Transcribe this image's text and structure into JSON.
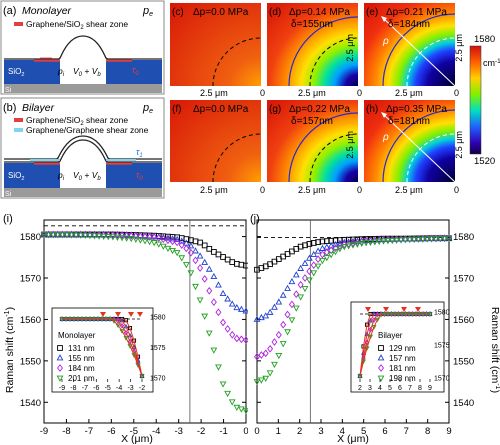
{
  "colors": {
    "sio2_blue": "#1f4fb0",
    "si_gray": "#9a9a9a",
    "shear_red": "#e04040",
    "shear_cyan": "#7fd4f0",
    "fit_red": "#e8321e",
    "dash": "#000000",
    "contour_blue": "#2a2ad0",
    "series_colors": [
      "#000000",
      "#1f3fd0",
      "#b020e0",
      "#20a020"
    ]
  },
  "panel_a": {
    "label": "(a)",
    "title": "Monolayer",
    "pe": "p",
    "pe_sub": "e",
    "legend": "Graphene/SiO",
    "legend_sub": "2",
    "legend_tail": " shear zone",
    "sio2": "SiO",
    "sio2_sub": "2",
    "si": "Si",
    "pi": "p",
    "pi_sub": "i",
    "volume": "V",
    "volume_sub0": "0",
    "volume_plus": " + V",
    "volume_subb": "b",
    "tau": "τ",
    "tau_sub": "0"
  },
  "panel_b": {
    "label": "(b)",
    "title": "Bilayer",
    "pe": "p",
    "pe_sub": "e",
    "legend1": "Graphene/SiO",
    "legend1_sub": "2",
    "legend1_tail": " shear zone",
    "legend2": "Graphene/Graphene shear zone",
    "sio2": "SiO",
    "sio2_sub": "2",
    "si": "Si",
    "pi": "p",
    "pi_sub": "i",
    "volume": "V",
    "volume_sub0": "0",
    "volume_plus": " + V",
    "volume_subb": "b",
    "tau0": "τ",
    "tau0_sub": "0",
    "tau1": "τ",
    "tau1_sub": "1"
  },
  "maps": [
    {
      "label": "(c)",
      "line1": "Δp=0.0 MPa",
      "line2": ""
    },
    {
      "label": "(d)",
      "line1": "Δp=0.14 MPa",
      "line2": "δ=155nm"
    },
    {
      "label": "(e)",
      "line1": "Δp=0.21 MPa",
      "line2": "δ=184nm"
    },
    {
      "label": "(f)",
      "line1": "Δp=0.0 MPa",
      "line2": ""
    },
    {
      "label": "(g)",
      "line1": "Δp=0.22 MPa",
      "line2": "δ=157nm"
    },
    {
      "label": "(h)",
      "line1": "Δp=0.35 MPa",
      "line2": "δ=181nm"
    }
  ],
  "map_axis": {
    "tick_x": "2.5 μm",
    "tick_zero": "0",
    "tick_y": "2.5 μm",
    "rho": "ρ"
  },
  "colorbar": {
    "max": "1580",
    "unit": "cm",
    "unit_sup": "-1",
    "min": "1520"
  },
  "plot_i": {
    "label": "(i)",
    "ylabel": "Raman shift (cm",
    "ylabel_sup": "-1",
    "ylabel_tail": ")",
    "xlabel": "X (μm)",
    "xticks": [
      "-9",
      "-8",
      "-7",
      "-6",
      "-5",
      "-4",
      "-3",
      "-2",
      "-1",
      "0"
    ],
    "yticks": [
      "1580",
      "1570",
      "1560",
      "1550",
      "1540"
    ],
    "inset": {
      "title": "Monolayer",
      "items": [
        "131 nm",
        "155 nm",
        "184 nm",
        "201 nm"
      ],
      "xticks": [
        "-9",
        "-8",
        "-7",
        "-6",
        "-5",
        "-4",
        "-3",
        "-2"
      ],
      "yticks": [
        "1580",
        "1575",
        "1570"
      ]
    }
  },
  "plot_j": {
    "label": "(j)",
    "ylabel": "Raman shift (cm",
    "ylabel_sup": "-1",
    "ylabel_tail": ")",
    "xlabel": "X (μm)",
    "xticks": [
      "0",
      "1",
      "2",
      "3",
      "4",
      "5",
      "6",
      "7",
      "8",
      "9"
    ],
    "yticks": [
      "1580",
      "1570",
      "1560",
      "1550",
      "1540"
    ],
    "inset": {
      "title": "Bilayer",
      "items": [
        "129 nm",
        "157 nm",
        "181 nm",
        "198 nm"
      ],
      "xticks": [
        "2",
        "3",
        "4",
        "5",
        "6",
        "7",
        "8",
        "9"
      ],
      "yticks": [
        "1580",
        "1575",
        "1570"
      ]
    }
  },
  "chart_data": [
    {
      "type": "scatter",
      "panel": "(i)",
      "xlabel": "X (μm)",
      "ylabel": "Raman shift (cm-1)",
      "xlim": [
        -9,
        0
      ],
      "ylim": [
        1535,
        1584
      ],
      "legend_title": "Monolayer",
      "series": [
        {
          "name": "131 nm",
          "marker": "square",
          "x": [
            -9,
            -8,
            -7,
            -6,
            -5,
            -4,
            -3,
            -2.5,
            -2,
            -1.5,
            -1,
            -0.5,
            0
          ],
          "y": [
            1580.5,
            1580.5,
            1580.5,
            1580.5,
            1580.4,
            1580.2,
            1579.8,
            1579.2,
            1578.5,
            1576.5,
            1575,
            1573.5,
            1573
          ]
        },
        {
          "name": "155 nm",
          "marker": "triangle-up",
          "x": [
            -9,
            -8,
            -7,
            -6,
            -5,
            -4,
            -3,
            -2.5,
            -2,
            -1.5,
            -1,
            -0.5,
            0
          ],
          "y": [
            1580.5,
            1580.5,
            1580.5,
            1580.5,
            1580.3,
            1580,
            1579.2,
            1578,
            1575,
            1571,
            1566,
            1563,
            1562
          ]
        },
        {
          "name": "184 nm",
          "marker": "diamond",
          "x": [
            -9,
            -8,
            -7,
            -6,
            -5,
            -4,
            -3,
            -2.5,
            -2,
            -1.5,
            -1,
            -0.5,
            0
          ],
          "y": [
            1580.5,
            1580.5,
            1580.5,
            1580.4,
            1580.2,
            1579.8,
            1578.5,
            1576.5,
            1572,
            1565,
            1559,
            1555.5,
            1555
          ]
        },
        {
          "name": "201 nm",
          "marker": "triangle-down",
          "x": [
            -9,
            -8,
            -7,
            -6,
            -5,
            -4,
            -3,
            -2.5,
            -2,
            -1.5,
            -1,
            -0.5,
            0
          ],
          "y": [
            1580.5,
            1580.5,
            1580.3,
            1580,
            1579.5,
            1578.5,
            1576,
            1572,
            1564,
            1554,
            1544,
            1539,
            1538
          ]
        }
      ]
    },
    {
      "type": "scatter",
      "panel": "(j)",
      "xlabel": "X (μm)",
      "ylabel": "Raman shift (cm-1)",
      "xlim": [
        0,
        9
      ],
      "ylim": [
        1535,
        1584
      ],
      "legend_title": "Bilayer",
      "series": [
        {
          "name": "129 nm",
          "marker": "square",
          "x": [
            0,
            0.5,
            1,
            1.5,
            2,
            2.5,
            3,
            4,
            5,
            6,
            7,
            8,
            9
          ],
          "y": [
            1572,
            1573,
            1574.5,
            1576,
            1577.5,
            1578.3,
            1578.8,
            1579.2,
            1579.4,
            1579.5,
            1579.5,
            1579.6,
            1579.6
          ]
        },
        {
          "name": "157 nm",
          "marker": "triangle-up",
          "x": [
            0,
            0.5,
            1,
            1.5,
            2,
            2.5,
            3,
            4,
            5,
            6,
            7,
            8,
            9
          ],
          "y": [
            1560,
            1561,
            1564,
            1568,
            1572,
            1575,
            1577,
            1578.5,
            1579,
            1579.3,
            1579.4,
            1579.5,
            1579.6
          ]
        },
        {
          "name": "181 nm",
          "marker": "diamond",
          "x": [
            0,
            0.5,
            1,
            1.5,
            2,
            2.5,
            3,
            4,
            5,
            6,
            7,
            8,
            9
          ],
          "y": [
            1551,
            1552,
            1556,
            1562,
            1568,
            1572,
            1575.5,
            1578,
            1578.8,
            1579.2,
            1579.4,
            1579.5,
            1579.6
          ]
        },
        {
          "name": "198 nm",
          "marker": "triangle-down",
          "x": [
            0,
            0.5,
            1,
            1.5,
            2,
            2.5,
            3,
            4,
            5,
            6,
            7,
            8,
            9
          ],
          "y": [
            1545,
            1546,
            1551,
            1558,
            1565,
            1570,
            1574,
            1577.5,
            1578.5,
            1579,
            1579.3,
            1579.5,
            1579.6
          ]
        }
      ]
    }
  ]
}
